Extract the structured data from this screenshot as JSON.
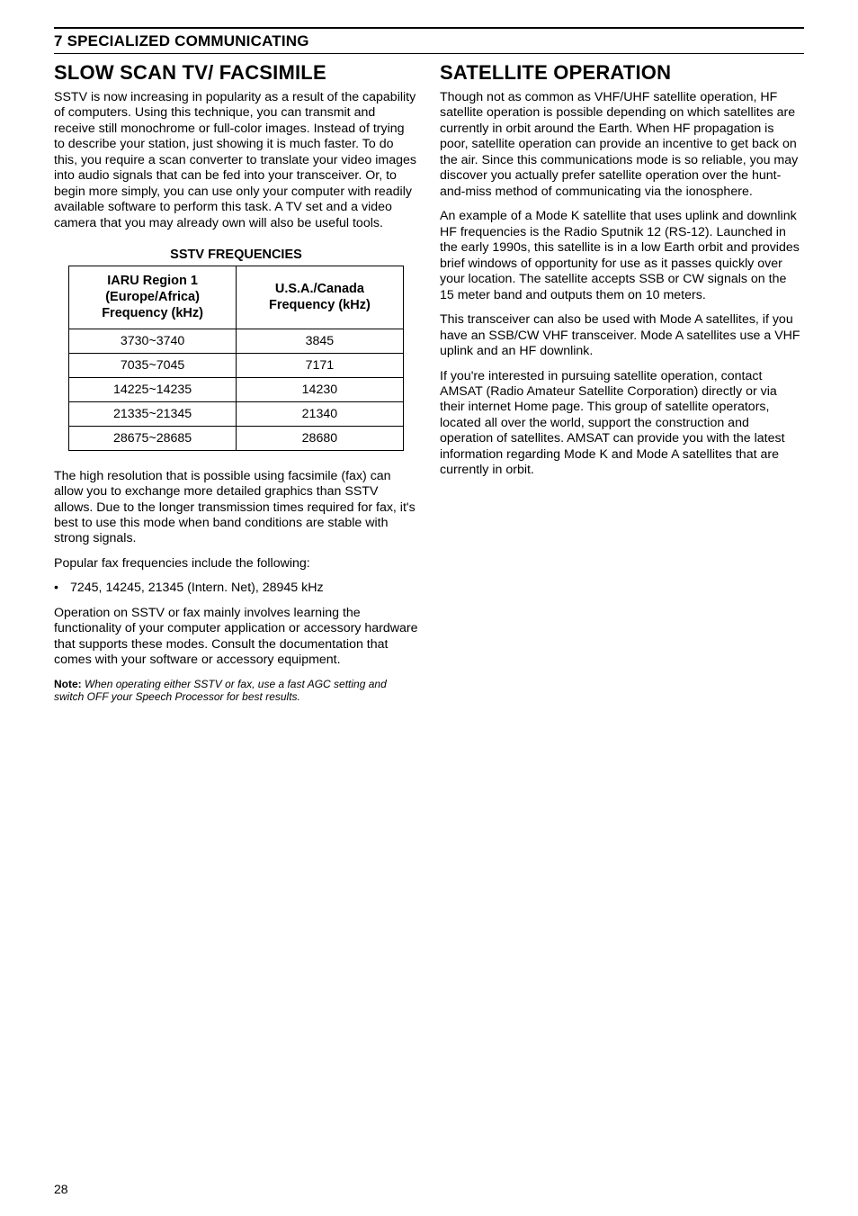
{
  "chapter": "7 SPECIALIZED COMMUNICATING",
  "page_number": "28",
  "left": {
    "heading": "SLOW SCAN TV/ FACSIMILE",
    "p1": "SSTV is now increasing in popularity as a result of the capability of computers.  Using this technique, you can transmit and receive still monochrome or full-color images.  Instead of trying to describe your station, just showing it is much faster.  To do this, you require a scan converter to translate your video images into audio signals that can be fed into your transceiver.  Or, to begin more simply, you can use only your computer with readily available software to perform this task.  A TV set and a video camera that you may already own will also be useful tools.",
    "table_title": "SSTV FREQUENCIES",
    "table": {
      "col1_header_l1": "IARU Region 1",
      "col1_header_l2": "(Europe/Africa)",
      "col1_header_l3": "Frequency (kHz)",
      "col2_header_l1": "U.S.A./Canada",
      "col2_header_l2": "Frequency (kHz)",
      "rows": [
        {
          "c1": "3730~3740",
          "c2": "3845"
        },
        {
          "c1": "7035~7045",
          "c2": "7171"
        },
        {
          "c1": "14225~14235",
          "c2": "14230"
        },
        {
          "c1": "21335~21345",
          "c2": "21340"
        },
        {
          "c1": "28675~28685",
          "c2": "28680"
        }
      ]
    },
    "p2": "The high resolution that is possible using facsimile (fax) can allow you to exchange more detailed graphics than SSTV allows.  Due to the longer transmission times required for fax, it's best to use this mode when band conditions are stable with strong signals.",
    "p3": "Popular fax frequencies include the following:",
    "bullet": "7245, 14245, 21345 (Intern. Net), 28945 kHz",
    "p4": "Operation on SSTV or fax mainly involves learning the functionality of your computer application or accessory hardware that supports these modes.  Consult the documentation that comes with your software or accessory equipment.",
    "note_label": "Note:",
    "note_text": "When operating either SSTV or fax, use a fast AGC setting and switch OFF your Speech Processor for best results."
  },
  "right": {
    "heading": "SATELLITE OPERATION",
    "p1": "Though not as common as VHF/UHF satellite operation, HF satellite operation is possible depending on which satellites are currently in orbit around the Earth.  When HF propagation is poor, satellite operation can provide an incentive to get back on the air.  Since this communications mode is so reliable, you may discover you actually prefer satellite operation over the hunt-and-miss method of communicating via the ionosphere.",
    "p2": "An example of a Mode K satellite that uses uplink and downlink HF frequencies is the Radio Sputnik 12 (RS-12).  Launched in the early 1990s, this satellite is in a low Earth orbit and provides brief windows of opportunity for use as it passes quickly over your location.  The satellite accepts SSB or CW signals on the 15 meter band and outputs them on 10 meters.",
    "p3": "This transceiver can also be used with Mode A satellites, if you have an SSB/CW VHF transceiver.  Mode A satellites use a VHF uplink and an HF downlink.",
    "p4": "If you're interested in pursuing satellite operation, contact AMSAT (Radio Amateur Satellite Corporation) directly or via their internet Home page.  This group of satellite operators, located all over the world, support the construction and operation of satellites.  AMSAT can provide you with the latest information regarding Mode K and Mode A satellites that are currently in orbit."
  }
}
